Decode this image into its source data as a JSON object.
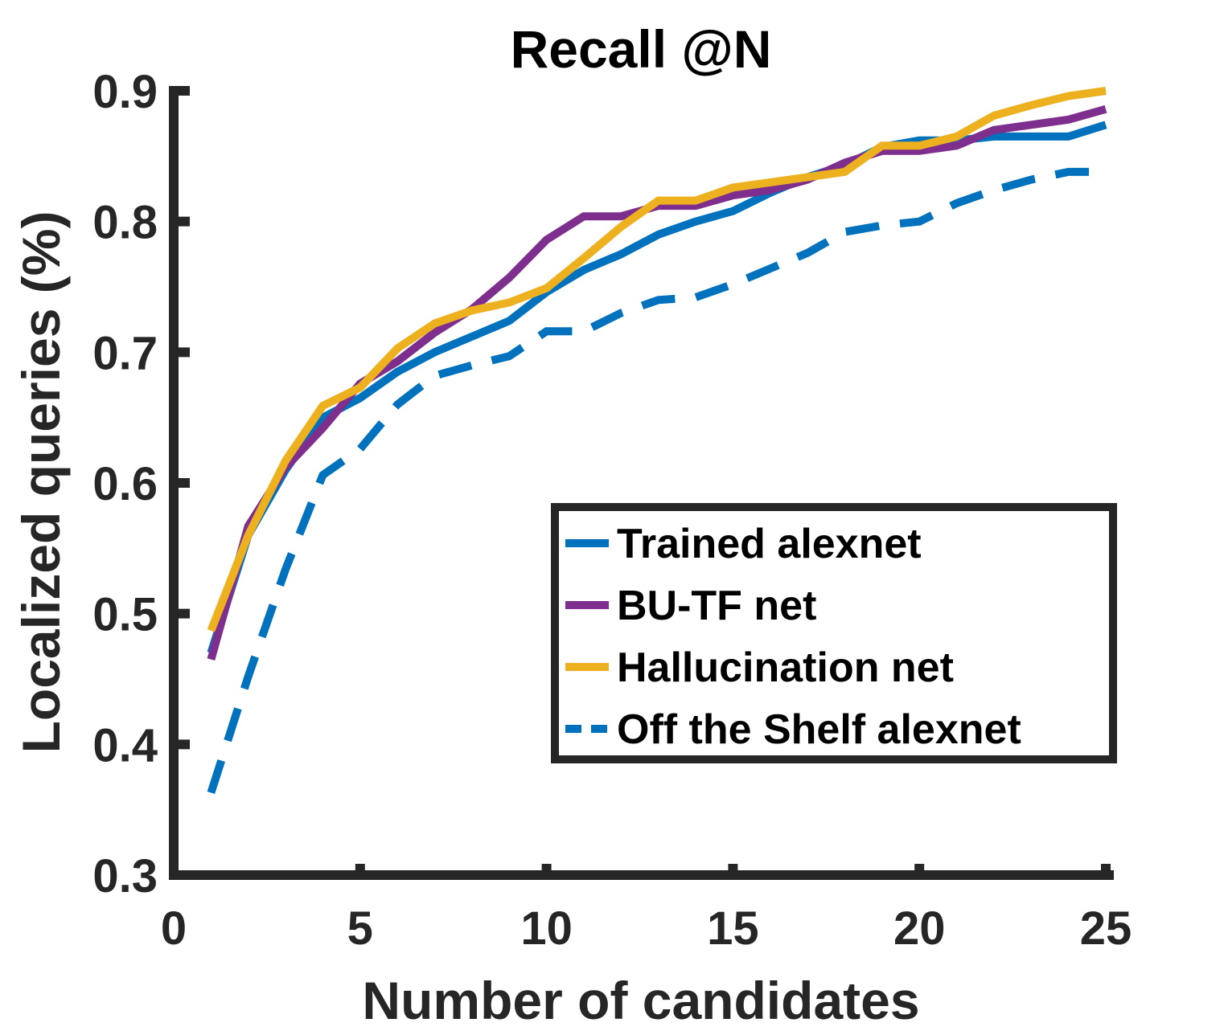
{
  "chart_data": {
    "type": "line",
    "title": "Recall @N",
    "xlabel": "Number of candidates",
    "ylabel": "Localized queries (%)",
    "xlim": [
      0,
      25
    ],
    "ylim": [
      0.3,
      0.9
    ],
    "xticks": [
      0,
      5,
      10,
      15,
      20,
      25
    ],
    "yticks": [
      0.3,
      0.4,
      0.5,
      0.6,
      0.7,
      0.8,
      0.9
    ],
    "xtick_labels": [
      "0",
      "5",
      "10",
      "15",
      "20",
      "25"
    ],
    "ytick_labels": [
      "0.3",
      "0.4",
      "0.5",
      "0.6",
      "0.7",
      "0.8",
      "0.9"
    ],
    "grid": false,
    "legend_position": "lower-right",
    "x": [
      1,
      2,
      3,
      4,
      5,
      6,
      7,
      8,
      9,
      10,
      11,
      12,
      13,
      14,
      15,
      16,
      17,
      18,
      19,
      20,
      21,
      22,
      23,
      24,
      25
    ],
    "series": [
      {
        "name": "Trained alexnet",
        "color": "#0072BD",
        "dash": "solid",
        "values": [
          0.47,
          0.56,
          0.61,
          0.65,
          0.665,
          0.685,
          0.7,
          0.712,
          0.724,
          0.746,
          0.763,
          0.775,
          0.79,
          0.8,
          0.808,
          0.822,
          0.834,
          0.843,
          0.857,
          0.862,
          0.862,
          0.865,
          0.865,
          0.865,
          0.874
        ]
      },
      {
        "name": "BU-TF net",
        "color": "#7E2F8E",
        "dash": "solid",
        "values": [
          0.465,
          0.567,
          0.612,
          0.642,
          0.676,
          0.693,
          0.715,
          0.733,
          0.757,
          0.786,
          0.804,
          0.804,
          0.812,
          0.812,
          0.82,
          0.824,
          0.832,
          0.845,
          0.854,
          0.854,
          0.858,
          0.87,
          0.874,
          0.878,
          0.886
        ]
      },
      {
        "name": "Hallucination net",
        "color": "#EDB120",
        "dash": "solid",
        "values": [
          0.487,
          0.56,
          0.617,
          0.659,
          0.673,
          0.703,
          0.722,
          0.732,
          0.738,
          0.749,
          0.772,
          0.796,
          0.816,
          0.816,
          0.826,
          0.83,
          0.834,
          0.838,
          0.858,
          0.858,
          0.865,
          0.881,
          0.889,
          0.896,
          0.9
        ]
      },
      {
        "name": "Off the Shelf alexnet",
        "color": "#0072BD",
        "dash": "dashed",
        "values": [
          0.363,
          0.452,
          0.534,
          0.606,
          0.626,
          0.66,
          0.682,
          0.69,
          0.697,
          0.716,
          0.716,
          0.73,
          0.74,
          0.742,
          0.752,
          0.764,
          0.776,
          0.792,
          0.797,
          0.8,
          0.814,
          0.824,
          0.832,
          0.838,
          0.838
        ]
      }
    ]
  }
}
